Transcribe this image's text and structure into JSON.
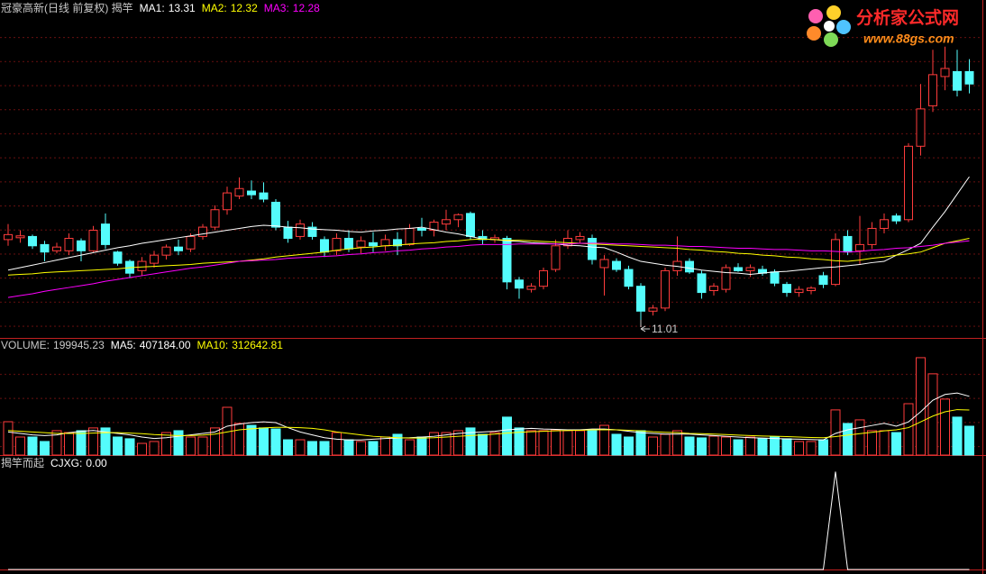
{
  "watermark": {
    "title": "分析家公式网",
    "url": "www.88gs.com"
  },
  "chart_data": [
    {
      "type": "candlestick",
      "title": "冠豪高新(日线 前复权) 揭竿",
      "up_color": "#ff3c3c",
      "down_color": "#54fcfc",
      "ylim": [
        10.72,
        16.15
      ],
      "annotation": {
        "text": "11.01"
      },
      "open": [
        12.3,
        12.33,
        12.35,
        12.22,
        12.12,
        12.12,
        12.28,
        12.12,
        12.55,
        12.1,
        11.95,
        11.8,
        11.92,
        12.05,
        12.18,
        12.15,
        12.35,
        12.5,
        12.78,
        13.0,
        13.08,
        13.05,
        12.9,
        12.5,
        12.35,
        12.5,
        12.3,
        12.12,
        12.32,
        12.18,
        12.25,
        12.2,
        12.3,
        12.22,
        12.48,
        12.45,
        12.55,
        12.62,
        12.72,
        12.35,
        12.3,
        12.32,
        11.65,
        11.5,
        11.55,
        11.82,
        12.2,
        12.3,
        12.32,
        11.85,
        11.95,
        11.82,
        11.55,
        11.15,
        11.2,
        11.8,
        11.95,
        11.75,
        11.48,
        11.5,
        11.85,
        11.8,
        11.82,
        11.78,
        11.58,
        11.45,
        11.48,
        11.72,
        11.58,
        12.35,
        12.12,
        12.22,
        12.48,
        12.68,
        12.62,
        13.8,
        14.45,
        14.92,
        15.0,
        15.0
      ],
      "high": [
        12.55,
        12.45,
        12.38,
        12.28,
        12.25,
        12.4,
        12.32,
        12.52,
        12.72,
        12.12,
        11.98,
        12.02,
        12.12,
        12.22,
        12.3,
        12.4,
        12.55,
        12.85,
        13.15,
        13.3,
        13.25,
        13.22,
        12.95,
        12.6,
        12.62,
        12.58,
        12.35,
        12.4,
        12.45,
        12.35,
        12.42,
        12.38,
        12.42,
        12.55,
        12.65,
        12.62,
        12.78,
        12.72,
        12.75,
        12.45,
        12.38,
        12.36,
        11.7,
        11.6,
        11.85,
        12.3,
        12.45,
        12.42,
        12.38,
        12.05,
        12.0,
        11.88,
        11.6,
        11.25,
        11.85,
        12.35,
        12.0,
        11.8,
        11.6,
        11.9,
        11.92,
        11.9,
        11.88,
        11.82,
        11.62,
        11.55,
        11.55,
        11.78,
        12.4,
        12.45,
        12.68,
        12.58,
        12.72,
        12.72,
        13.85,
        14.8,
        15.35,
        15.4,
        15.35,
        15.2
      ],
      "low": [
        12.2,
        12.25,
        12.15,
        11.95,
        12.08,
        12.05,
        11.95,
        12.1,
        12.15,
        11.88,
        11.68,
        11.72,
        11.85,
        11.98,
        12.05,
        12.1,
        12.3,
        12.45,
        12.7,
        12.95,
        12.95,
        12.9,
        12.45,
        12.25,
        12.3,
        12.3,
        12.02,
        12.05,
        12.1,
        12.08,
        12.1,
        12.12,
        12.05,
        12.2,
        12.35,
        12.35,
        12.45,
        12.5,
        12.3,
        12.22,
        12.25,
        11.5,
        11.35,
        11.45,
        11.5,
        11.78,
        12.15,
        12.25,
        11.9,
        11.4,
        11.78,
        11.5,
        11.01,
        11.08,
        11.15,
        11.72,
        11.75,
        11.35,
        11.4,
        11.45,
        11.78,
        11.7,
        11.72,
        11.55,
        11.38,
        11.38,
        11.42,
        11.52,
        11.55,
        12.05,
        11.9,
        12.15,
        12.4,
        12.55,
        12.58,
        13.65,
        14.35,
        14.7,
        14.6,
        14.65
      ],
      "close": [
        12.38,
        12.36,
        12.2,
        12.1,
        12.18,
        12.32,
        12.12,
        12.45,
        12.22,
        11.92,
        11.76,
        11.95,
        12.05,
        12.18,
        12.12,
        12.35,
        12.5,
        12.78,
        13.05,
        13.12,
        13.02,
        12.95,
        12.5,
        12.32,
        12.55,
        12.35,
        12.1,
        12.32,
        12.15,
        12.28,
        12.2,
        12.3,
        12.2,
        12.48,
        12.45,
        12.58,
        12.62,
        12.7,
        12.35,
        12.3,
        12.33,
        11.62,
        11.52,
        11.55,
        11.8,
        12.2,
        12.32,
        12.35,
        11.98,
        11.98,
        11.82,
        11.55,
        11.15,
        11.2,
        11.8,
        11.95,
        11.78,
        11.45,
        11.55,
        11.85,
        11.8,
        11.85,
        11.76,
        11.6,
        11.45,
        11.5,
        11.52,
        11.58,
        12.3,
        12.1,
        12.22,
        12.48,
        12.62,
        12.6,
        13.8,
        14.4,
        14.95,
        15.05,
        14.7,
        14.8
      ],
      "series": [
        {
          "name": "MA1:",
          "value_label": "13.31",
          "color": "#ffffff",
          "values": [
            11.81,
            11.85,
            11.89,
            11.93,
            11.97,
            12.01,
            12.05,
            12.09,
            12.13,
            12.17,
            12.2,
            12.24,
            12.27,
            12.3,
            12.33,
            12.36,
            12.39,
            12.42,
            12.45,
            12.48,
            12.51,
            12.53,
            12.52,
            12.5,
            12.49,
            12.47,
            12.46,
            12.45,
            12.43,
            12.42,
            12.44,
            12.45,
            12.47,
            12.48,
            12.5,
            12.46,
            12.42,
            12.39,
            12.35,
            12.31,
            12.3,
            12.28,
            12.27,
            12.25,
            12.24,
            12.23,
            12.21,
            12.2,
            12.18,
            12.17,
            12.1,
            12.02,
            11.95,
            11.92,
            11.89,
            11.87,
            11.84,
            11.81,
            11.79,
            11.77,
            11.76,
            11.74,
            11.76,
            11.78,
            11.79,
            11.81,
            11.83,
            11.85,
            11.86,
            11.88,
            11.9,
            11.93,
            11.95,
            12.05,
            12.14,
            12.24,
            12.5,
            12.75,
            13.03,
            13.31
          ]
        },
        {
          "name": "MA2:",
          "value_label": "12.32",
          "color": "#ffff00",
          "values": [
            11.73,
            11.74,
            11.75,
            11.77,
            11.78,
            11.79,
            11.8,
            11.81,
            11.82,
            11.83,
            11.85,
            11.86,
            11.87,
            11.88,
            11.89,
            11.9,
            11.92,
            11.93,
            11.94,
            11.95,
            11.97,
            11.99,
            12.02,
            12.04,
            12.06,
            12.08,
            12.1,
            12.13,
            12.15,
            12.17,
            12.18,
            12.2,
            12.21,
            12.23,
            12.24,
            12.25,
            12.27,
            12.28,
            12.3,
            12.31,
            12.3,
            12.29,
            12.29,
            12.28,
            12.27,
            12.26,
            12.25,
            12.24,
            12.23,
            12.22,
            12.21,
            12.2,
            12.19,
            12.18,
            12.17,
            12.16,
            12.14,
            12.13,
            12.11,
            12.1,
            12.08,
            12.07,
            12.05,
            12.04,
            12.02,
            12.01,
            11.99,
            11.98,
            11.96,
            11.95,
            11.97,
            12.0,
            12.02,
            12.05,
            12.07,
            12.1,
            12.17,
            12.24,
            12.28,
            12.32
          ]
        },
        {
          "name": "MA3:",
          "value_label": "12.28",
          "color": "#ff00ff",
          "values": [
            11.37,
            11.4,
            11.43,
            11.47,
            11.5,
            11.53,
            11.56,
            11.59,
            11.63,
            11.66,
            11.69,
            11.72,
            11.75,
            11.78,
            11.81,
            11.84,
            11.86,
            11.89,
            11.92,
            11.95,
            11.96,
            11.97,
            11.98,
            12.0,
            12.01,
            12.02,
            12.03,
            12.04,
            12.06,
            12.07,
            12.09,
            12.1,
            12.12,
            12.13,
            12.15,
            12.16,
            12.18,
            12.19,
            12.21,
            12.22,
            12.22,
            12.22,
            12.23,
            12.23,
            12.23,
            12.23,
            12.23,
            12.24,
            12.24,
            12.24,
            12.23,
            12.23,
            12.22,
            12.21,
            12.21,
            12.2,
            12.19,
            12.19,
            12.18,
            12.17,
            12.16,
            12.16,
            12.15,
            12.14,
            12.14,
            12.13,
            12.12,
            12.12,
            12.11,
            12.1,
            12.11,
            12.13,
            12.14,
            12.16,
            12.17,
            12.19,
            12.21,
            12.24,
            12.26,
            12.28
          ]
        }
      ]
    },
    {
      "type": "bar",
      "up_color": "#ff3c3c",
      "down_color": "#54fcfc",
      "ylim": [
        0,
        812000
      ],
      "series": [
        {
          "name": "VOLUME:",
          "value_label": "199945.23",
          "type": "bar",
          "values": [
            231000,
            125000,
            125000,
            94000,
            169000,
            156000,
            169000,
            188000,
            188000,
            125000,
            113000,
            81000,
            94000,
            156000,
            169000,
            125000,
            125000,
            188000,
            331000,
            219000,
            206000,
            188000,
            181000,
            106000,
            106000,
            94000,
            94000,
            156000,
            106000,
            94000,
            94000,
            125000,
            144000,
            106000,
            125000,
            156000,
            156000,
            169000,
            188000,
            144000,
            156000,
            263000,
            188000,
            169000,
            169000,
            175000,
            169000,
            169000,
            175000,
            206000,
            144000,
            125000,
            169000,
            125000,
            144000,
            169000,
            125000,
            119000,
            131000,
            125000,
            106000,
            125000,
            113000,
            125000,
            113000,
            94000,
            94000,
            106000,
            313000,
            219000,
            244000,
            169000,
            169000,
            156000,
            356000,
            675000,
            563000,
            388000,
            263000,
            199945.23
          ]
        },
        {
          "name": "MA5:",
          "value_label": "407184.00",
          "type": "line",
          "color": "#ffffff",
          "values": [
            160000,
            150000,
            140000,
            135000,
            140000,
            155000,
            165000,
            170000,
            160000,
            150000,
            140000,
            125000,
            115000,
            120000,
            130000,
            140000,
            150000,
            160000,
            200000,
            215000,
            225000,
            230000,
            225000,
            190000,
            160000,
            140000,
            120000,
            110000,
            105000,
            105000,
            110000,
            115000,
            118000,
            120000,
            125000,
            130000,
            140000,
            150000,
            155000,
            160000,
            165000,
            175000,
            180000,
            185000,
            180000,
            178000,
            175000,
            175000,
            180000,
            180000,
            175000,
            165000,
            155000,
            150000,
            145000,
            145000,
            145000,
            140000,
            135000,
            130000,
            125000,
            120000,
            118000,
            115000,
            112000,
            110000,
            108000,
            105000,
            150000,
            175000,
            190000,
            205000,
            220000,
            200000,
            230000,
            300000,
            380000,
            420000,
            430000,
            407184
          ]
        },
        {
          "name": "MA10:",
          "value_label": "312642.81",
          "type": "line",
          "color": "#ffff00",
          "values": [
            170000,
            165000,
            160000,
            155000,
            150000,
            150000,
            150000,
            152000,
            155000,
            155000,
            152000,
            148000,
            142000,
            138000,
            135000,
            135000,
            138000,
            145000,
            160000,
            175000,
            182000,
            188000,
            192000,
            192000,
            190000,
            185000,
            175000,
            160000,
            150000,
            140000,
            130000,
            125000,
            120000,
            118000,
            118000,
            120000,
            125000,
            130000,
            135000,
            140000,
            145000,
            152000,
            158000,
            162000,
            165000,
            168000,
            170000,
            172000,
            175000,
            176000,
            175000,
            172000,
            168000,
            162000,
            158000,
            155000,
            150000,
            148000,
            145000,
            142000,
            138000,
            135000,
            132000,
            130000,
            128000,
            125000,
            122000,
            120000,
            128000,
            138000,
            148000,
            158000,
            168000,
            175000,
            190000,
            230000,
            270000,
            300000,
            315000,
            312642.81
          ]
        }
      ]
    },
    {
      "type": "line",
      "title": "揭竿而起",
      "ylim": [
        0,
        1.17
      ],
      "series": [
        {
          "name": "CJXG:",
          "value_label": "0.00",
          "color": "#ffffff",
          "values": [
            0,
            0,
            0,
            0,
            0,
            0,
            0,
            0,
            0,
            0,
            0,
            0,
            0,
            0,
            0,
            0,
            0,
            0,
            0,
            0,
            0,
            0,
            0,
            0,
            0,
            0,
            0,
            0,
            0,
            0,
            0,
            0,
            0,
            0,
            0,
            0,
            0,
            0,
            0,
            0,
            0,
            0,
            0,
            0,
            0,
            0,
            0,
            0,
            0,
            0,
            0,
            0,
            0,
            0,
            0,
            0,
            0,
            0,
            0,
            0,
            0,
            0,
            0,
            0,
            0,
            0,
            0,
            0,
            1,
            0,
            0,
            0,
            0,
            0,
            0,
            0,
            0,
            0,
            0,
            0
          ]
        }
      ]
    }
  ]
}
